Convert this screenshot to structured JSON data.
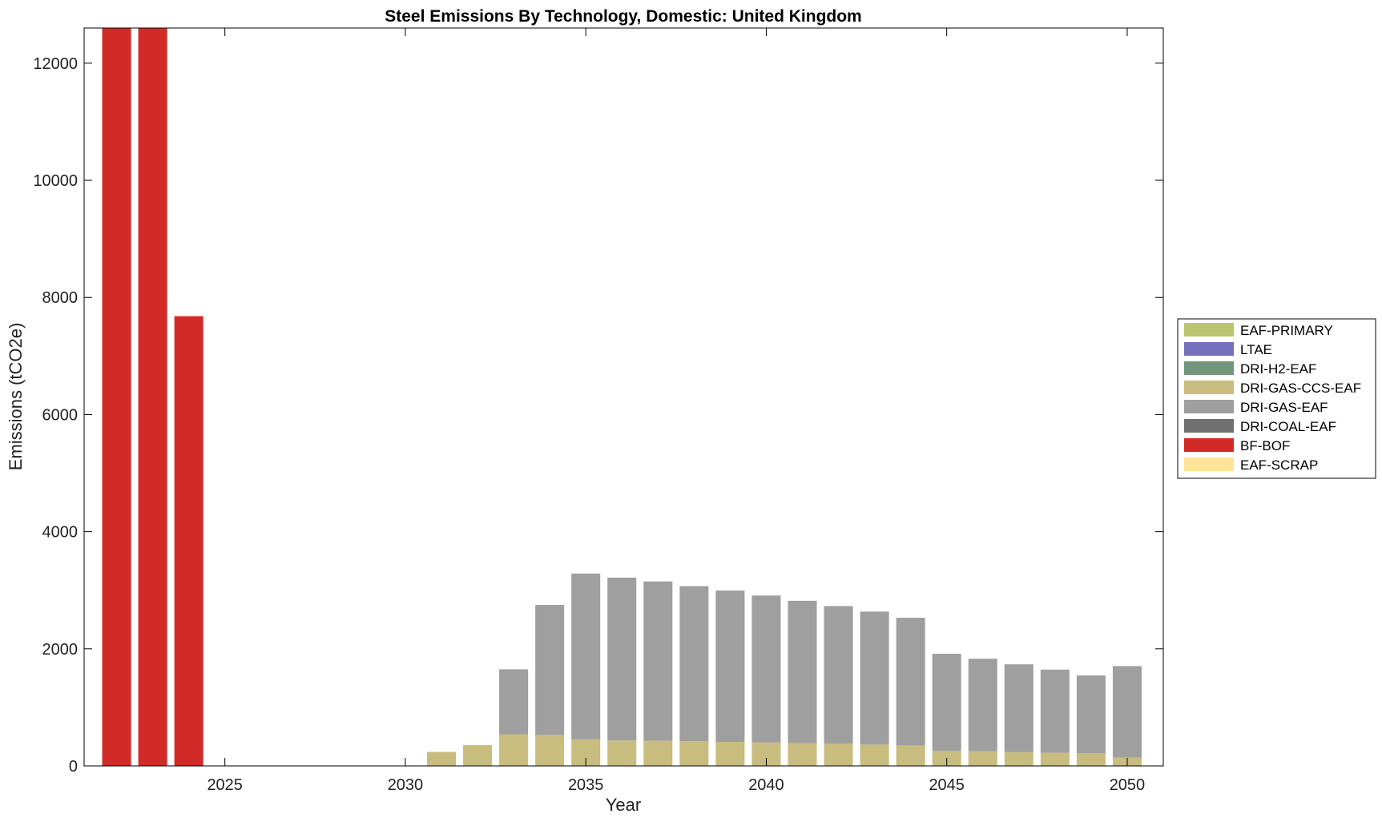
{
  "chart_data": {
    "type": "bar",
    "stacked": true,
    "title": "Steel Emissions By Technology, Domestic: United Kingdom",
    "xlabel": "Year",
    "ylabel": "Emissions (tCO2e)",
    "xlim": [
      2021.1,
      2051.0
    ],
    "ylim": [
      0,
      12600
    ],
    "xticks": [
      2025,
      2030,
      2035,
      2040,
      2045,
      2050
    ],
    "yticks": [
      0,
      2000,
      4000,
      6000,
      8000,
      10000,
      12000
    ],
    "grid": false,
    "legend_position": "outside-right",
    "x": [
      2022,
      2023,
      2024,
      2025,
      2026,
      2027,
      2028,
      2029,
      2030,
      2031,
      2032,
      2033,
      2034,
      2035,
      2036,
      2037,
      2038,
      2039,
      2040,
      2041,
      2042,
      2043,
      2044,
      2045,
      2046,
      2047,
      2048,
      2049,
      2050
    ],
    "series": [
      {
        "name": "EAF-PRIMARY",
        "color": "#bcc46e",
        "values": [
          0,
          0,
          0,
          0,
          0,
          0,
          0,
          0,
          0,
          0,
          0,
          0,
          0,
          0,
          0,
          0,
          0,
          0,
          0,
          0,
          0,
          0,
          0,
          0,
          0,
          0,
          0,
          0,
          0
        ]
      },
      {
        "name": "LTAE",
        "color": "#7570bb",
        "values": [
          0,
          0,
          0,
          0,
          0,
          0,
          0,
          0,
          0,
          0,
          0,
          0,
          0,
          0,
          0,
          0,
          0,
          0,
          0,
          0,
          0,
          0,
          0,
          0,
          0,
          0,
          0,
          0,
          0
        ]
      },
      {
        "name": "DRI-H2-EAF",
        "color": "#73957b",
        "values": [
          0,
          0,
          0,
          0,
          0,
          0,
          0,
          0,
          0,
          0,
          0,
          0,
          0,
          0,
          0,
          0,
          0,
          0,
          0,
          0,
          0,
          0,
          0,
          0,
          0,
          0,
          0,
          0,
          0
        ]
      },
      {
        "name": "DRI-GAS-CCS-EAF",
        "color": "#c8bd7e",
        "values": [
          0,
          0,
          0,
          0,
          0,
          0,
          0,
          0,
          0,
          240,
          355,
          540,
          530,
          455,
          435,
          430,
          420,
          410,
          400,
          390,
          380,
          365,
          350,
          260,
          250,
          235,
          225,
          215,
          140
        ]
      },
      {
        "name": "DRI-GAS-EAF",
        "color": "#9f9f9f",
        "values": [
          0,
          0,
          0,
          0,
          0,
          0,
          0,
          0,
          0,
          0,
          0,
          1110,
          2220,
          2830,
          2780,
          2720,
          2650,
          2585,
          2510,
          2430,
          2350,
          2270,
          2180,
          1655,
          1580,
          1500,
          1420,
          1330,
          1565
        ]
      },
      {
        "name": "DRI-COAL-EAF",
        "color": "#707070",
        "values": [
          0,
          0,
          0,
          0,
          0,
          0,
          0,
          0,
          0,
          0,
          0,
          0,
          0,
          0,
          0,
          0,
          0,
          0,
          0,
          0,
          0,
          0,
          0,
          0,
          0,
          0,
          0,
          0,
          0
        ]
      },
      {
        "name": "BF-BOF",
        "color": "#d22b27",
        "values": [
          12600,
          12600,
          7680,
          0,
          0,
          0,
          0,
          0,
          0,
          0,
          0,
          0,
          0,
          0,
          0,
          0,
          0,
          0,
          0,
          0,
          0,
          0,
          0,
          0,
          0,
          0,
          0,
          0,
          0
        ]
      },
      {
        "name": "EAF-SCRAP",
        "color": "#ffe396",
        "values": [
          0,
          0,
          0,
          0,
          0,
          0,
          0,
          0,
          0,
          0,
          0,
          0,
          0,
          0,
          0,
          0,
          0,
          0,
          0,
          0,
          0,
          0,
          0,
          0,
          0,
          0,
          0,
          0,
          0
        ]
      }
    ]
  }
}
